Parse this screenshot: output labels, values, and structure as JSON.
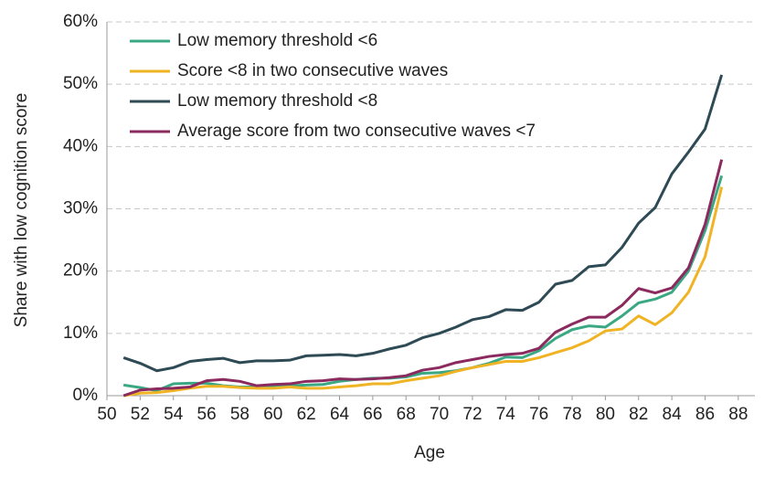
{
  "chart_data": {
    "type": "line",
    "x_label": "Age",
    "y_label": "Share with low cognition score",
    "x": [
      51,
      52,
      53,
      54,
      55,
      56,
      57,
      58,
      59,
      60,
      61,
      62,
      63,
      64,
      65,
      66,
      67,
      68,
      69,
      70,
      71,
      72,
      73,
      74,
      75,
      76,
      77,
      78,
      79,
      80,
      81,
      82,
      83,
      84,
      85,
      86,
      87
    ],
    "series": [
      {
        "name": "Low memory threshold <6",
        "color": "#3aa882",
        "values": [
          1.7,
          1.3,
          0.8,
          1.9,
          2.0,
          2.0,
          1.6,
          1.4,
          1.4,
          1.5,
          1.6,
          1.7,
          1.8,
          2.3,
          2.6,
          2.8,
          2.8,
          3.0,
          3.6,
          3.7,
          4.0,
          4.5,
          5.2,
          6.2,
          6.1,
          7.2,
          9.2,
          10.6,
          11.2,
          11.0,
          12.8,
          14.9,
          15.5,
          16.6,
          20.0,
          26.5,
          35.3
        ]
      },
      {
        "name": "Score <8 in two consecutive waves",
        "color": "#f0b323",
        "values": [
          0,
          0.4,
          0.5,
          0.8,
          1.2,
          1.5,
          1.5,
          1.3,
          1.2,
          1.2,
          1.4,
          1.2,
          1.2,
          1.4,
          1.6,
          1.9,
          1.9,
          2.4,
          2.8,
          3.2,
          3.9,
          4.5,
          5.0,
          5.5,
          5.5,
          6.1,
          6.9,
          7.7,
          8.8,
          10.4,
          10.7,
          12.8,
          11.4,
          13.3,
          16.6,
          22.3,
          33.5
        ]
      },
      {
        "name": "Low memory threshold <8",
        "color": "#2e4a54",
        "values": [
          6.1,
          5.2,
          4.0,
          4.5,
          5.5,
          5.8,
          6.0,
          5.3,
          5.6,
          5.6,
          5.7,
          6.4,
          6.5,
          6.6,
          6.4,
          6.8,
          7.5,
          8.1,
          9.3,
          10.0,
          11.0,
          12.2,
          12.7,
          13.8,
          13.7,
          15.0,
          17.9,
          18.5,
          20.7,
          21.0,
          23.8,
          27.7,
          30.2,
          35.6,
          39.1,
          42.8,
          51.5
        ]
      },
      {
        "name": "Average score from two consecutive waves <7",
        "color": "#8b2a5e",
        "values": [
          0,
          0.9,
          1.1,
          1.2,
          1.4,
          2.4,
          2.6,
          2.3,
          1.6,
          1.8,
          1.9,
          2.3,
          2.4,
          2.7,
          2.6,
          2.7,
          2.9,
          3.2,
          4.1,
          4.5,
          5.3,
          5.8,
          6.3,
          6.6,
          6.8,
          7.6,
          10.2,
          11.5,
          12.6,
          12.6,
          14.5,
          17.2,
          16.5,
          17.3,
          20.5,
          27.5,
          37.9
        ]
      }
    ],
    "xlim": [
      50,
      89
    ],
    "xticks": [
      50,
      52,
      54,
      56,
      58,
      60,
      62,
      64,
      66,
      68,
      70,
      72,
      74,
      76,
      78,
      80,
      82,
      84,
      86,
      88
    ],
    "ylim": [
      0,
      60
    ],
    "yticks": [
      {
        "value": 0,
        "label": "0%"
      },
      {
        "value": 10,
        "label": "10%"
      },
      {
        "value": 20,
        "label": "20%"
      },
      {
        "value": 30,
        "label": "30%"
      },
      {
        "value": 40,
        "label": "40%"
      },
      {
        "value": 50,
        "label": "50%"
      },
      {
        "value": 60,
        "label": "60%"
      }
    ],
    "grid": true,
    "legend": "top-left"
  }
}
